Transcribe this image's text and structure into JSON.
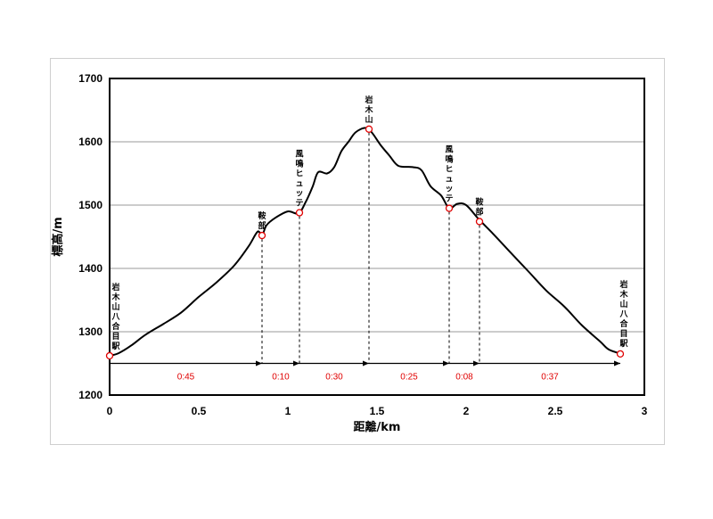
{
  "chart_data": {
    "type": "line",
    "xlabel": "距離/km",
    "ylabel": "標高/m",
    "xlim": [
      0,
      3
    ],
    "ylim": [
      1200,
      1700
    ],
    "x_ticks": [
      "0",
      "0.5",
      "1",
      "1.5",
      "2",
      "2.5",
      "3"
    ],
    "y_ticks": [
      "1200",
      "1300",
      "1400",
      "1500",
      "1600",
      "1700"
    ],
    "grid": "horizontal",
    "line_color": "#000000",
    "marker_color": "#e00000",
    "profile": [
      [
        0.0,
        1262
      ],
      [
        0.05,
        1266
      ],
      [
        0.12,
        1278
      ],
      [
        0.2,
        1295
      ],
      [
        0.3,
        1312
      ],
      [
        0.4,
        1330
      ],
      [
        0.5,
        1355
      ],
      [
        0.6,
        1378
      ],
      [
        0.7,
        1405
      ],
      [
        0.78,
        1435
      ],
      [
        0.83,
        1458
      ],
      [
        0.855,
        1452
      ],
      [
        0.88,
        1468
      ],
      [
        0.93,
        1480
      ],
      [
        1.0,
        1490
      ],
      [
        1.06,
        1487
      ],
      [
        1.1,
        1505
      ],
      [
        1.14,
        1530
      ],
      [
        1.17,
        1552
      ],
      [
        1.22,
        1550
      ],
      [
        1.26,
        1560
      ],
      [
        1.3,
        1585
      ],
      [
        1.34,
        1600
      ],
      [
        1.38,
        1615
      ],
      [
        1.435,
        1622
      ],
      [
        1.47,
        1615
      ],
      [
        1.52,
        1595
      ],
      [
        1.57,
        1578
      ],
      [
        1.62,
        1562
      ],
      [
        1.7,
        1560
      ],
      [
        1.75,
        1555
      ],
      [
        1.8,
        1530
      ],
      [
        1.86,
        1515
      ],
      [
        1.905,
        1495
      ],
      [
        1.95,
        1502
      ],
      [
        2.0,
        1500
      ],
      [
        2.07,
        1478
      ],
      [
        2.15,
        1455
      ],
      [
        2.25,
        1425
      ],
      [
        2.35,
        1395
      ],
      [
        2.45,
        1365
      ],
      [
        2.55,
        1340
      ],
      [
        2.65,
        1310
      ],
      [
        2.75,
        1285
      ],
      [
        2.8,
        1272
      ],
      [
        2.87,
        1265
      ]
    ],
    "points": [
      {
        "x": 0.0,
        "y": 1262,
        "label": "岩木山八合目駅",
        "side": "left"
      },
      {
        "x": 0.855,
        "y": 1452,
        "label": "鞍部",
        "side": "center"
      },
      {
        "x": 1.065,
        "y": 1488,
        "label": "風鳴ヒュッテ",
        "side": "center"
      },
      {
        "x": 1.455,
        "y": 1620,
        "label": "岩木山",
        "side": "center"
      },
      {
        "x": 1.905,
        "y": 1495,
        "label": "風鳴ヒュッテ",
        "side": "center"
      },
      {
        "x": 2.075,
        "y": 1474,
        "label": "鞍部",
        "side": "center"
      },
      {
        "x": 2.865,
        "y": 1265,
        "label": "岩木山八合目駅",
        "side": "right"
      }
    ],
    "segments": [
      {
        "from": 0.0,
        "to": 0.855,
        "time": "0:45"
      },
      {
        "from": 0.855,
        "to": 1.065,
        "time": "0:10"
      },
      {
        "from": 1.065,
        "to": 1.455,
        "time": "0:30"
      },
      {
        "from": 1.455,
        "to": 1.905,
        "time": "0:25"
      },
      {
        "from": 1.905,
        "to": 2.075,
        "time": "0:08"
      },
      {
        "from": 2.075,
        "to": 2.865,
        "time": "0:37"
      }
    ],
    "arrow_level": 1250
  }
}
